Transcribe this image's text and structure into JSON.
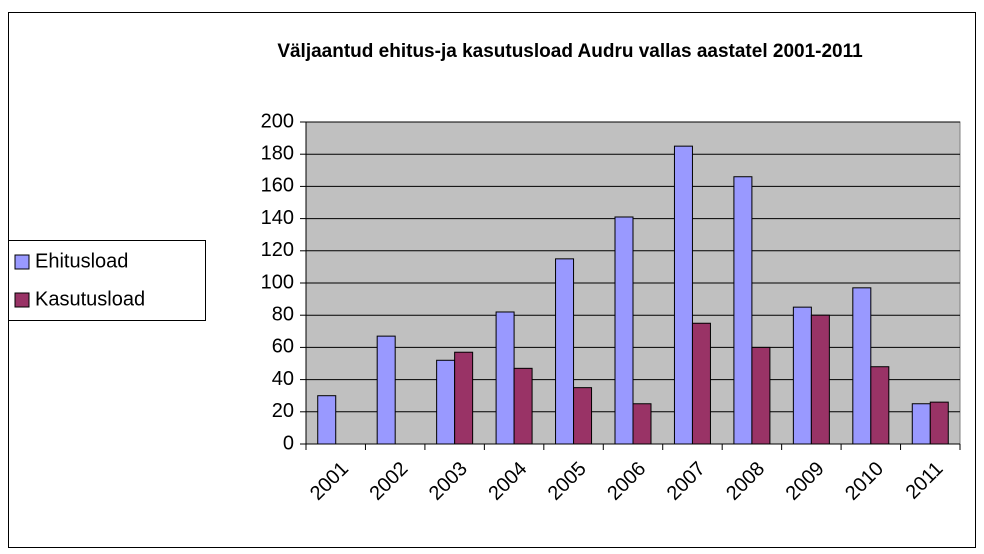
{
  "chart_data": {
    "type": "bar",
    "title": "Väljaantud ehitus-ja kasutusload Audru vallas aastatel 2001-2011",
    "categories": [
      "2001",
      "2002",
      "2003",
      "2004",
      "2005",
      "2006",
      "2007",
      "2008",
      "2009",
      "2010",
      "2011"
    ],
    "series": [
      {
        "name": "Ehitusload",
        "color": "#9999ff",
        "values": [
          30,
          67,
          52,
          82,
          115,
          141,
          185,
          166,
          85,
          97,
          25
        ]
      },
      {
        "name": "Kasutusload",
        "color": "#993366",
        "values": [
          0,
          0,
          57,
          47,
          35,
          25,
          75,
          60,
          80,
          48,
          26
        ]
      }
    ],
    "ylim": [
      0,
      200
    ],
    "yticks": [
      0,
      20,
      40,
      60,
      80,
      100,
      120,
      140,
      160,
      180,
      200
    ],
    "grid": true,
    "legend": "left"
  }
}
